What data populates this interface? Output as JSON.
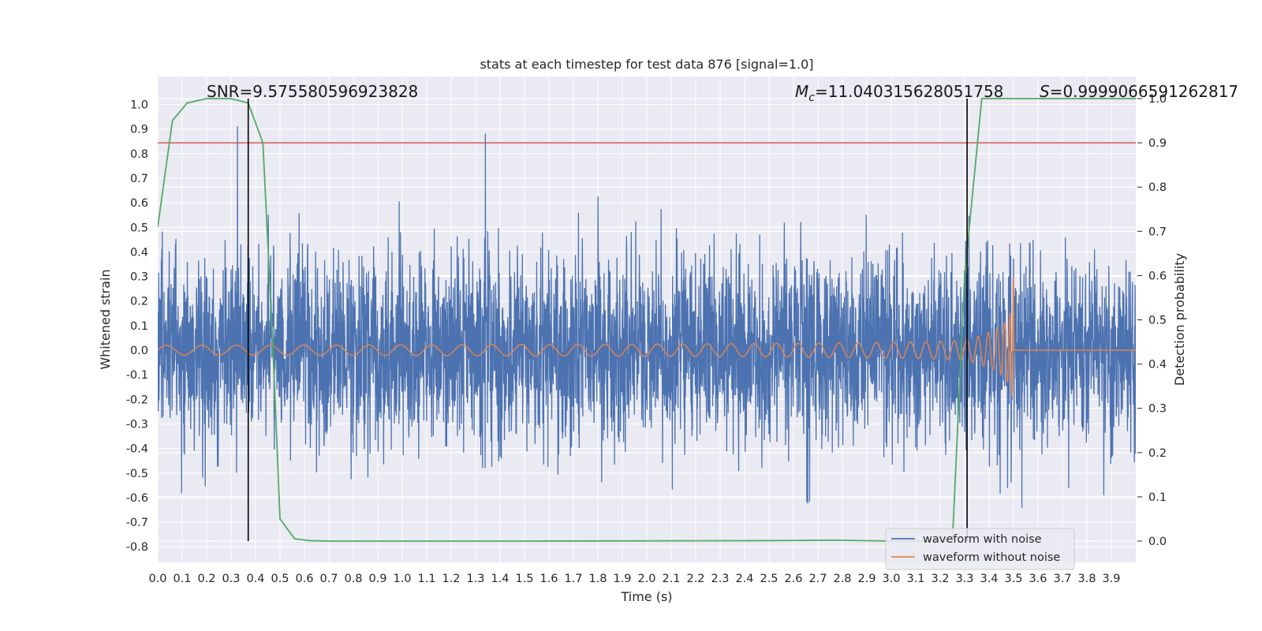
{
  "chart_data": {
    "type": "line",
    "title": "stats at each timestep for test data 876 [signal=1.0]",
    "xlabel": "Time (s)",
    "ylabel": "Whitened strain",
    "y2label": "Detection probability",
    "xlim": [
      0.0,
      4.0
    ],
    "ylim": [
      -0.86,
      1.09
    ],
    "y2lim": [
      -0.05,
      1.02
    ],
    "x_ticks": [
      "0.0",
      "0.1",
      "0.2",
      "0.3",
      "0.4",
      "0.5",
      "0.6",
      "0.7",
      "0.8",
      "0.9",
      "1.0",
      "1.1",
      "1.2",
      "1.3",
      "1.4",
      "1.5",
      "1.6",
      "1.7",
      "1.8",
      "1.9",
      "2.0",
      "2.1",
      "2.2",
      "2.3",
      "2.4",
      "2.5",
      "2.6",
      "2.7",
      "2.8",
      "2.9",
      "3.0",
      "3.1",
      "3.2",
      "3.3",
      "3.4",
      "3.5",
      "3.6",
      "3.7",
      "3.8",
      "3.9"
    ],
    "y_ticks": [
      "1.0",
      "0.9",
      "0.8",
      "0.7",
      "0.6",
      "0.5",
      "0.4",
      "0.3",
      "0.2",
      "0.1",
      "0.0",
      "-0.1",
      "-0.2",
      "-0.3",
      "-0.4",
      "-0.5",
      "-0.6",
      "-0.7",
      "-0.8"
    ],
    "y2_ticks": [
      "1.0",
      "0.9",
      "0.8",
      "0.7",
      "0.6",
      "0.5",
      "0.4",
      "0.3",
      "0.2",
      "0.1",
      "0.0"
    ],
    "grid": true,
    "legend_position": "lower-right",
    "legend": [
      "waveform with noise",
      "waveform without noise"
    ],
    "colors": {
      "noise": "#4c72b0",
      "clean": "#dd8452",
      "prob": "#55a868",
      "threshold": "#c44e52",
      "marker": "#000000",
      "background": "#eaeaf2",
      "grid": "#ffffff"
    },
    "series": [
      {
        "name": "waveform with noise",
        "description_values": {
          "amplitude_range": [
            -0.72,
            1.0
          ],
          "typical_range": [
            -0.35,
            0.45
          ]
        }
      },
      {
        "name": "waveform without noise",
        "chirp": {
          "start_freq_hz": 11,
          "merger_time": 3.5,
          "start_amp": 0.02,
          "peak_amp": 0.3
        }
      },
      {
        "name": "detection probability",
        "axis": "right",
        "x": [
          0.0,
          0.06,
          0.12,
          0.2,
          0.25,
          0.3,
          0.37,
          0.43,
          0.47,
          0.5,
          0.56,
          0.62,
          0.7,
          1.5,
          2.5,
          2.77,
          3.0,
          3.1,
          3.2,
          3.25,
          3.3,
          3.37,
          3.5,
          4.0
        ],
        "y": [
          0.71,
          0.95,
          0.99,
          1.0,
          1.0,
          1.0,
          0.99,
          0.9,
          0.45,
          0.05,
          0.005,
          0.001,
          0.0,
          0.0,
          0.001,
          0.002,
          0.0,
          0.0,
          0.0,
          0.0,
          0.6,
          1.0,
          1.0,
          1.0
        ]
      }
    ],
    "threshold_line": {
      "axis": "right",
      "value": 0.9
    },
    "vertical_markers": [
      0.37,
      3.31
    ],
    "annotations": [
      {
        "id": "snr",
        "text": "SNR=9.575580596923828"
      },
      {
        "id": "mc",
        "text": "=11.040315628051758",
        "symbol": "M",
        "subscript": "c"
      },
      {
        "id": "s",
        "text": "=0.9999066591262817",
        "symbol": "S"
      }
    ]
  }
}
